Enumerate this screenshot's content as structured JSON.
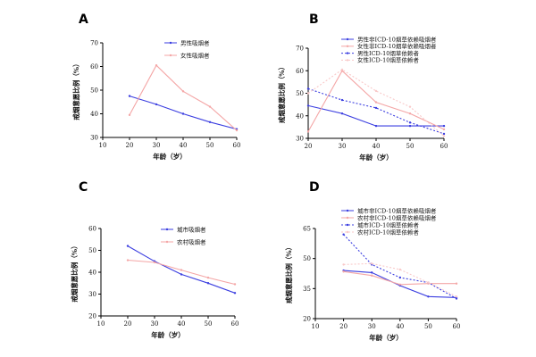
{
  "colors": {
    "blue": "#3a3de0",
    "pink": "#f4a6a6",
    "lightblue": "#8e94f2",
    "lightpink": "#f9c9c9"
  },
  "chart_data": [
    {
      "panel": "A",
      "type": "line",
      "xlabel": "年龄（岁）",
      "ylabel": "戒烟意愿比例（%）",
      "xlim": [
        10,
        60
      ],
      "ylim": [
        30,
        70
      ],
      "xticks": [
        "10",
        "20",
        "30",
        "40",
        "50",
        "60"
      ],
      "yticks": [
        "30",
        "40",
        "50",
        "60",
        "70"
      ],
      "legend_position": "top-right",
      "series": [
        {
          "name": "男性吸烟者",
          "color": "#3a3de0",
          "dash": "none",
          "x": [
            20,
            30,
            40,
            50,
            60
          ],
          "values": [
            47.5,
            44,
            40,
            36.5,
            33.5
          ]
        },
        {
          "name": "女性吸烟者",
          "color": "#f4a6a6",
          "dash": "none",
          "x": [
            20,
            30,
            40,
            50,
            60
          ],
          "values": [
            39.5,
            60.5,
            49.5,
            43,
            33
          ]
        }
      ]
    },
    {
      "panel": "B",
      "type": "line",
      "xlabel": "年龄（岁）",
      "ylabel": "戒烟意愿比例（%）",
      "xlim": [
        20,
        60
      ],
      "ylim": [
        30,
        70
      ],
      "xticks": [
        "20",
        "30",
        "40",
        "50",
        "60"
      ],
      "yticks": [
        "30",
        "40",
        "50",
        "60",
        "70"
      ],
      "legend_position": "top-right",
      "series": [
        {
          "name": "男性非ICD-10烟草依赖吸烟者",
          "color": "#3a3de0",
          "dash": "none",
          "x": [
            20,
            30,
            40,
            50,
            60
          ],
          "values": [
            44.5,
            41,
            35.5,
            35.5,
            35.5
          ]
        },
        {
          "name": "女性非ICD-10烟草依赖吸烟者",
          "color": "#f4a6a6",
          "dash": "none",
          "x": [
            20,
            30,
            40,
            50,
            60
          ],
          "values": [
            33,
            60,
            46,
            41,
            34
          ]
        },
        {
          "name": "男性ICD-10烟草依赖者",
          "color": "#3a3de0",
          "dash": "2,2",
          "x": [
            20,
            30,
            40,
            50,
            60
          ],
          "values": [
            52,
            47,
            43.5,
            37,
            32
          ]
        },
        {
          "name": "女性ICD-10烟草依赖者",
          "color": "#f9c9c9",
          "dash": "2,2",
          "x": [
            20,
            30,
            40,
            50,
            60
          ],
          "values": [
            50,
            60.5,
            51,
            44,
            31
          ]
        }
      ]
    },
    {
      "panel": "C",
      "type": "line",
      "xlabel": "年龄（岁）",
      "ylabel": "戒烟意愿比例（%）",
      "xlim": [
        10,
        60
      ],
      "ylim": [
        20,
        60
      ],
      "xticks": [
        "10",
        "20",
        "30",
        "40",
        "50",
        "60"
      ],
      "yticks": [
        "20",
        "30",
        "40",
        "50",
        "60"
      ],
      "legend_position": "top-right",
      "series": [
        {
          "name": "城市吸烟者",
          "color": "#3a3de0",
          "dash": "none",
          "x": [
            20,
            30,
            40,
            50,
            60
          ],
          "values": [
            52,
            45,
            39,
            35,
            30.5
          ]
        },
        {
          "name": "农村吸烟者",
          "color": "#f4a6a6",
          "dash": "none",
          "x": [
            20,
            30,
            40,
            50,
            60
          ],
          "values": [
            45.5,
            44.5,
            41,
            37.5,
            34.5
          ]
        }
      ]
    },
    {
      "panel": "D",
      "type": "line",
      "xlabel": "年龄（岁）",
      "ylabel": "戒烟意愿比例（%）",
      "xlim": [
        10,
        60
      ],
      "ylim": [
        20,
        65
      ],
      "xticks": [
        "10",
        "20",
        "30",
        "40",
        "50",
        "60"
      ],
      "yticks": [
        "20",
        "35",
        "50",
        "65"
      ],
      "legend_position": "top-right",
      "series": [
        {
          "name": "城市非ICD-10烟草依赖吸烟者",
          "color": "#3a3de0",
          "dash": "none",
          "x": [
            20,
            30,
            40,
            50,
            60
          ],
          "values": [
            44,
            43,
            36.5,
            31,
            30.5
          ]
        },
        {
          "name": "农村非ICD-10烟草依赖吸烟者",
          "color": "#f4a6a6",
          "dash": "none",
          "x": [
            20,
            30,
            40,
            50,
            60
          ],
          "values": [
            43.5,
            41.5,
            37,
            37.5,
            37.5
          ]
        },
        {
          "name": "城市ICD-10烟草依赖者",
          "color": "#3a3de0",
          "dash": "2,2",
          "x": [
            20,
            30,
            40,
            50,
            60
          ],
          "values": [
            62,
            47,
            40.5,
            38,
            30
          ]
        },
        {
          "name": "农村ICD-10烟草依赖者",
          "color": "#f9c9c9",
          "dash": "2,2",
          "x": [
            20,
            30,
            40,
            50,
            60
          ],
          "values": [
            47,
            47.5,
            44.5,
            38,
            31
          ]
        }
      ]
    }
  ]
}
